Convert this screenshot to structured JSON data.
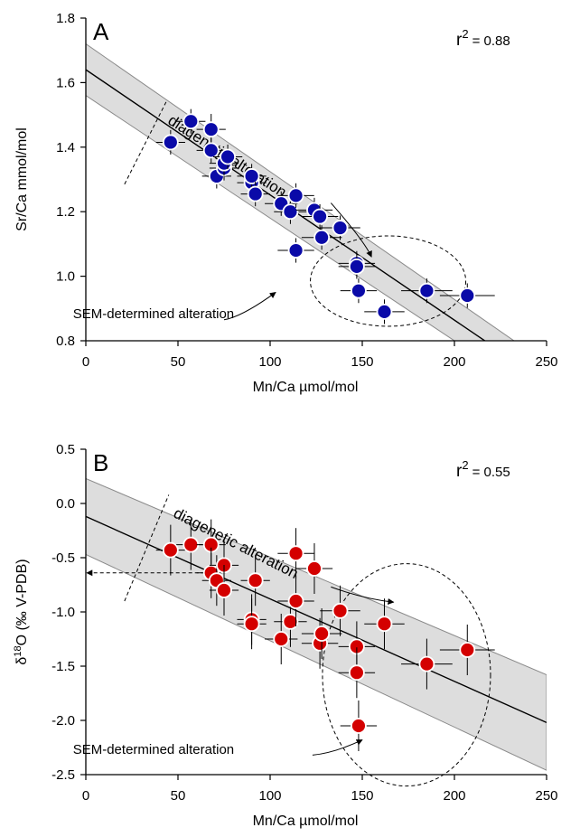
{
  "chart_data": [
    {
      "type": "scatter",
      "panel": "A",
      "r2_text": "r",
      "r2_sup": "2",
      "r2_value": "= 0.88",
      "xlabel": "Mn/Ca µmol/mol",
      "ylabel": "Sr/Ca mmol/mol",
      "xlim": [
        0,
        250
      ],
      "ylim": [
        0.8,
        1.8
      ],
      "xticks": [
        "0",
        "50",
        "100",
        "150",
        "200",
        "250"
      ],
      "yticks": [
        "0.8",
        "1.0",
        "1.2",
        "1.4",
        "1.6",
        "1.8"
      ],
      "marker_color": "#0a0aa8",
      "band_color": "#dddddd",
      "fit": {
        "x0": 0,
        "y0": 1.64,
        "x1": 250,
        "y1": 0.67
      },
      "band": {
        "upper": [
          [
            0,
            1.72
          ],
          [
            250,
            0.73
          ]
        ],
        "lower": [
          [
            0,
            1.56
          ],
          [
            250,
            0.61
          ]
        ],
        "mid_upper": 0.0,
        "mid_lower": 0.0
      },
      "annotations": {
        "diagenetic": "diagenetic alteration",
        "sem": "SEM-determined alteration"
      },
      "points": [
        {
          "x": 46,
          "y": 1.415,
          "xerr": 3,
          "yerr": 0.01
        },
        {
          "x": 57,
          "y": 1.48,
          "xerr": 3,
          "yerr": 0.01
        },
        {
          "x": 68,
          "y": 1.455,
          "xerr": 3,
          "yerr": 0.02
        },
        {
          "x": 68,
          "y": 1.39,
          "xerr": 3,
          "yerr": 0.01
        },
        {
          "x": 71,
          "y": 1.31,
          "xerr": 3,
          "yerr": 0.01
        },
        {
          "x": 75,
          "y": 1.335,
          "xerr": 3,
          "yerr": 0.01
        },
        {
          "x": 75,
          "y": 1.35,
          "xerr": 3,
          "yerr": 0.01
        },
        {
          "x": 77,
          "y": 1.37,
          "xerr": 3,
          "yerr": 0.01
        },
        {
          "x": 90,
          "y": 1.29,
          "xerr": 3,
          "yerr": 0.01
        },
        {
          "x": 90,
          "y": 1.31,
          "xerr": 3,
          "yerr": 0.01
        },
        {
          "x": 92,
          "y": 1.255,
          "xerr": 3,
          "yerr": 0.01
        },
        {
          "x": 106,
          "y": 1.225,
          "xerr": 4,
          "yerr": 0.01
        },
        {
          "x": 111,
          "y": 1.2,
          "xerr": 4,
          "yerr": 0.01
        },
        {
          "x": 114,
          "y": 1.25,
          "xerr": 5,
          "yerr": 0.01
        },
        {
          "x": 114,
          "y": 1.08,
          "xerr": 5,
          "yerr": 0.01
        },
        {
          "x": 124,
          "y": 1.205,
          "xerr": 5,
          "yerr": 0.01
        },
        {
          "x": 127,
          "y": 1.185,
          "xerr": 5,
          "yerr": 0.01
        },
        {
          "x": 128,
          "y": 1.12,
          "xerr": 6,
          "yerr": 0.01
        },
        {
          "x": 138,
          "y": 1.15,
          "xerr": 6,
          "yerr": 0.01
        },
        {
          "x": 147,
          "y": 1.04,
          "xerr": 5,
          "yerr": 0.01
        },
        {
          "x": 147,
          "y": 1.03,
          "xerr": 5,
          "yerr": 0.01
        },
        {
          "x": 148,
          "y": 0.955,
          "xerr": 5,
          "yerr": 0.01
        },
        {
          "x": 162,
          "y": 0.89,
          "xerr": 6,
          "yerr": 0.01
        },
        {
          "x": 185,
          "y": 0.955,
          "xerr": 9,
          "yerr": 0.01
        },
        {
          "x": 207,
          "y": 0.94,
          "xerr": 10,
          "yerr": 0.01
        }
      ]
    },
    {
      "type": "scatter",
      "panel": "B",
      "r2_text": "r",
      "r2_sup": "2",
      "r2_value": "= 0.55",
      "xlabel": "Mn/Ca µmol/mol",
      "ylabel": "δ18O (‰ V-PDB)",
      "xlim": [
        0,
        250
      ],
      "ylim": [
        -2.5,
        0.5
      ],
      "xticks": [
        "0",
        "50",
        "100",
        "150",
        "200",
        "250"
      ],
      "yticks": [
        "-2.5",
        "-2.0",
        "-1.5",
        "-1.0",
        "-0.5",
        "0.0",
        "0.5"
      ],
      "marker_color": "#d40000",
      "band_color": "#dddddd",
      "fit": {
        "x0": 0,
        "y0": -0.12,
        "x1": 250,
        "y1": -2.02
      },
      "band": {
        "upper": [
          [
            0,
            0.23
          ],
          [
            250,
            -1.58
          ]
        ],
        "lower": [
          [
            0,
            -0.47
          ],
          [
            250,
            -2.46
          ]
        ]
      },
      "annotations": {
        "diagenetic": "diagenetic alteration",
        "sem": "SEM-determined alteration"
      },
      "points": [
        {
          "x": 46,
          "y": -0.43,
          "xerr": 3,
          "yerr": 0.15
        },
        {
          "x": 57,
          "y": -0.38,
          "xerr": 3,
          "yerr": 0.15
        },
        {
          "x": 68,
          "y": -0.38,
          "xerr": 3,
          "yerr": 0.15
        },
        {
          "x": 68,
          "y": -0.64,
          "xerr": 3,
          "yerr": 0.15
        },
        {
          "x": 71,
          "y": -0.71,
          "xerr": 3,
          "yerr": 0.15
        },
        {
          "x": 75,
          "y": -0.57,
          "xerr": 3,
          "yerr": 0.15
        },
        {
          "x": 75,
          "y": -0.8,
          "xerr": 3,
          "yerr": 0.15
        },
        {
          "x": 90,
          "y": -1.07,
          "xerr": 3,
          "yerr": 0.15
        },
        {
          "x": 90,
          "y": -1.11,
          "xerr": 3,
          "yerr": 0.15
        },
        {
          "x": 92,
          "y": -0.71,
          "xerr": 3,
          "yerr": 0.15
        },
        {
          "x": 106,
          "y": -1.25,
          "xerr": 4,
          "yerr": 0.15
        },
        {
          "x": 111,
          "y": -1.09,
          "xerr": 4,
          "yerr": 0.15
        },
        {
          "x": 114,
          "y": -0.46,
          "xerr": 5,
          "yerr": 0.15
        },
        {
          "x": 114,
          "y": -0.9,
          "xerr": 5,
          "yerr": 0.15
        },
        {
          "x": 124,
          "y": -0.6,
          "xerr": 5,
          "yerr": 0.15
        },
        {
          "x": 127,
          "y": -1.29,
          "xerr": 5,
          "yerr": 0.15
        },
        {
          "x": 128,
          "y": -1.2,
          "xerr": 6,
          "yerr": 0.15
        },
        {
          "x": 138,
          "y": -0.99,
          "xerr": 6,
          "yerr": 0.15
        },
        {
          "x": 147,
          "y": -1.32,
          "xerr": 5,
          "yerr": 0.15
        },
        {
          "x": 147,
          "y": -1.56,
          "xerr": 5,
          "yerr": 0.15
        },
        {
          "x": 148,
          "y": -2.05,
          "xerr": 5,
          "yerr": 0.15
        },
        {
          "x": 162,
          "y": -1.11,
          "xerr": 6,
          "yerr": 0.15
        },
        {
          "x": 185,
          "y": -1.48,
          "xerr": 9,
          "yerr": 0.15
        },
        {
          "x": 207,
          "y": -1.35,
          "xerr": 10,
          "yerr": 0.15
        }
      ]
    }
  ]
}
